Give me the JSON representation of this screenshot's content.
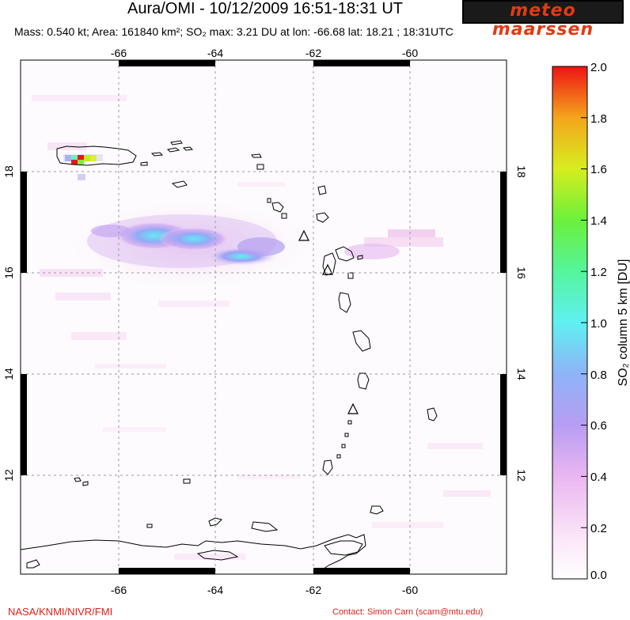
{
  "header": {
    "title": "Aura/OMI - 10/12/2009 16:51-18:31 UT",
    "logo_text": "meteo maarssen",
    "subtitle": "Mass: 0.540 kt; Area: 161840 km²; SO₂ max: 3.21 DU at lon: -66.68 lat: 18.21 ; 18:31UTC"
  },
  "map": {
    "lon_ticks": [
      "-66",
      "-64",
      "-62",
      "-60"
    ],
    "lat_ticks": [
      "18",
      "16",
      "14",
      "12"
    ],
    "volcano_markers": [
      "soufriere-hills",
      "la-soufriere-guadeloupe",
      "soufriere-st-vincent"
    ]
  },
  "colorbar": {
    "label": "SO₂ column 5 km [DU]",
    "ticks": [
      "2.0",
      "1.8",
      "1.6",
      "1.4",
      "1.2",
      "1.0",
      "0.8",
      "0.6",
      "0.4",
      "0.2",
      "0.0"
    ],
    "colors": [
      "#ffffff",
      "#f6d9f3",
      "#d59cef",
      "#a99ff5",
      "#7fc4f8",
      "#59f0f0",
      "#56f59a",
      "#7ff03a",
      "#d9ee1f",
      "#f2b01c",
      "#f1531a",
      "#ee1313"
    ]
  },
  "footer": {
    "credit": "NASA/KNMI/NIVR/FMI",
    "contact": "Contact: Simon Carn (scarn@mtu.edu)"
  }
}
